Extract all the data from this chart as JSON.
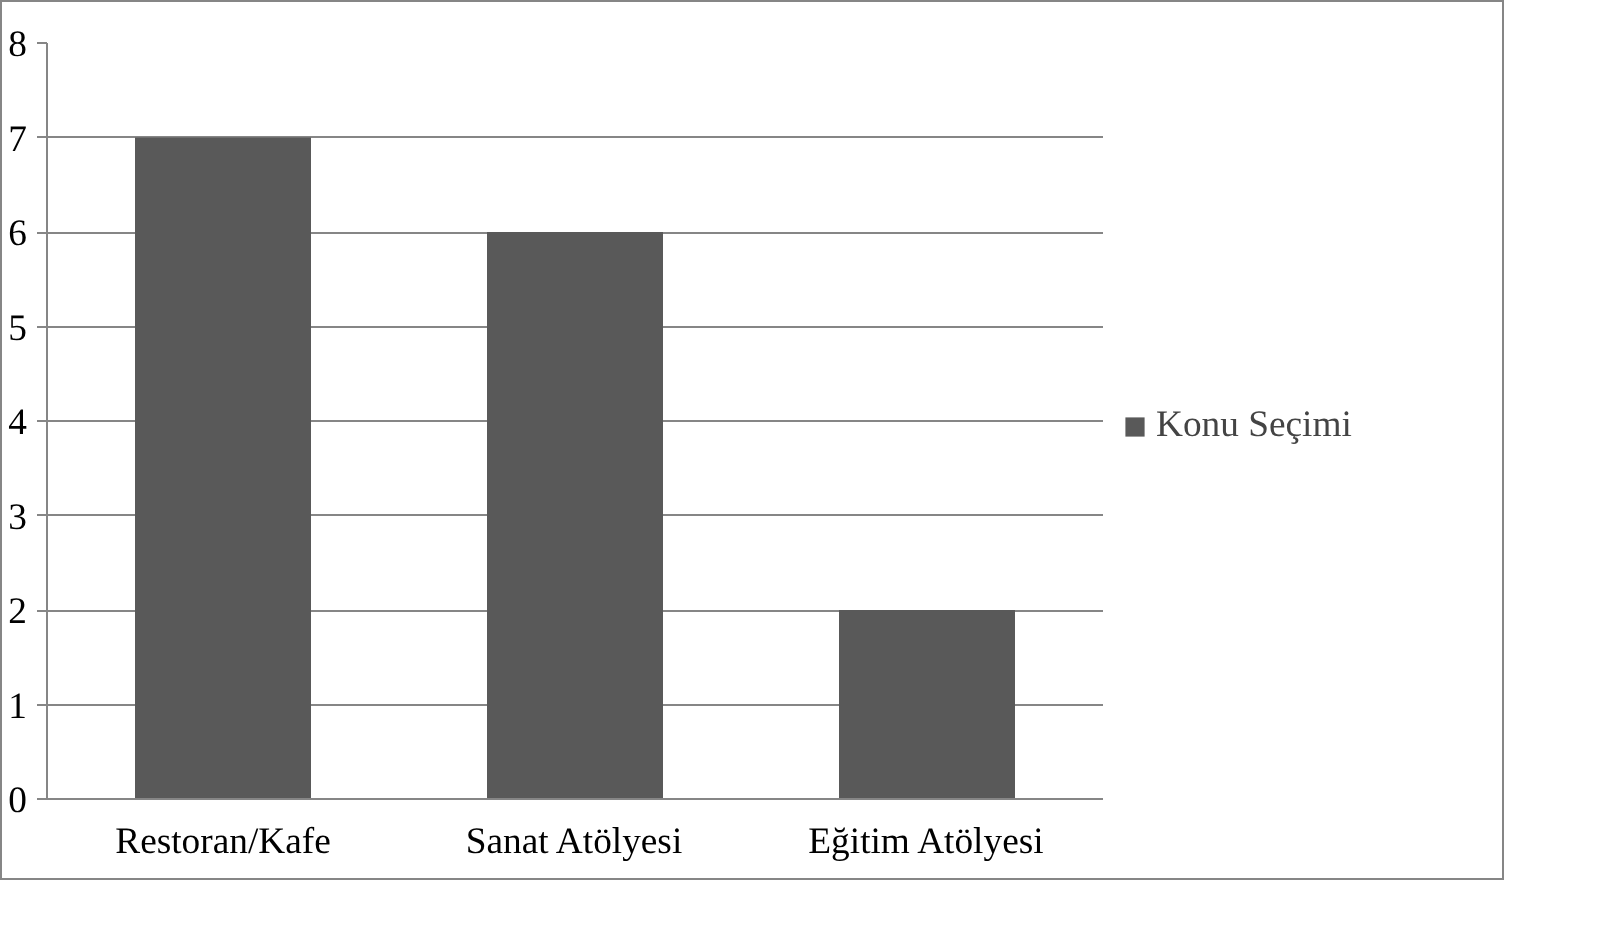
{
  "chart_data": {
    "type": "bar",
    "categories": [
      "Restoran/Kafe",
      "Sanat Atölyesi",
      "Eğitim Atölyesi"
    ],
    "series": [
      {
        "name": "Konu Seçimi",
        "color": "#595959",
        "values": [
          7,
          6,
          2
        ]
      }
    ],
    "ylim": [
      0,
      8
    ],
    "yticks": [
      0,
      1,
      2,
      3,
      4,
      5,
      6,
      7,
      8
    ],
    "grid": "y",
    "legend": "right"
  }
}
